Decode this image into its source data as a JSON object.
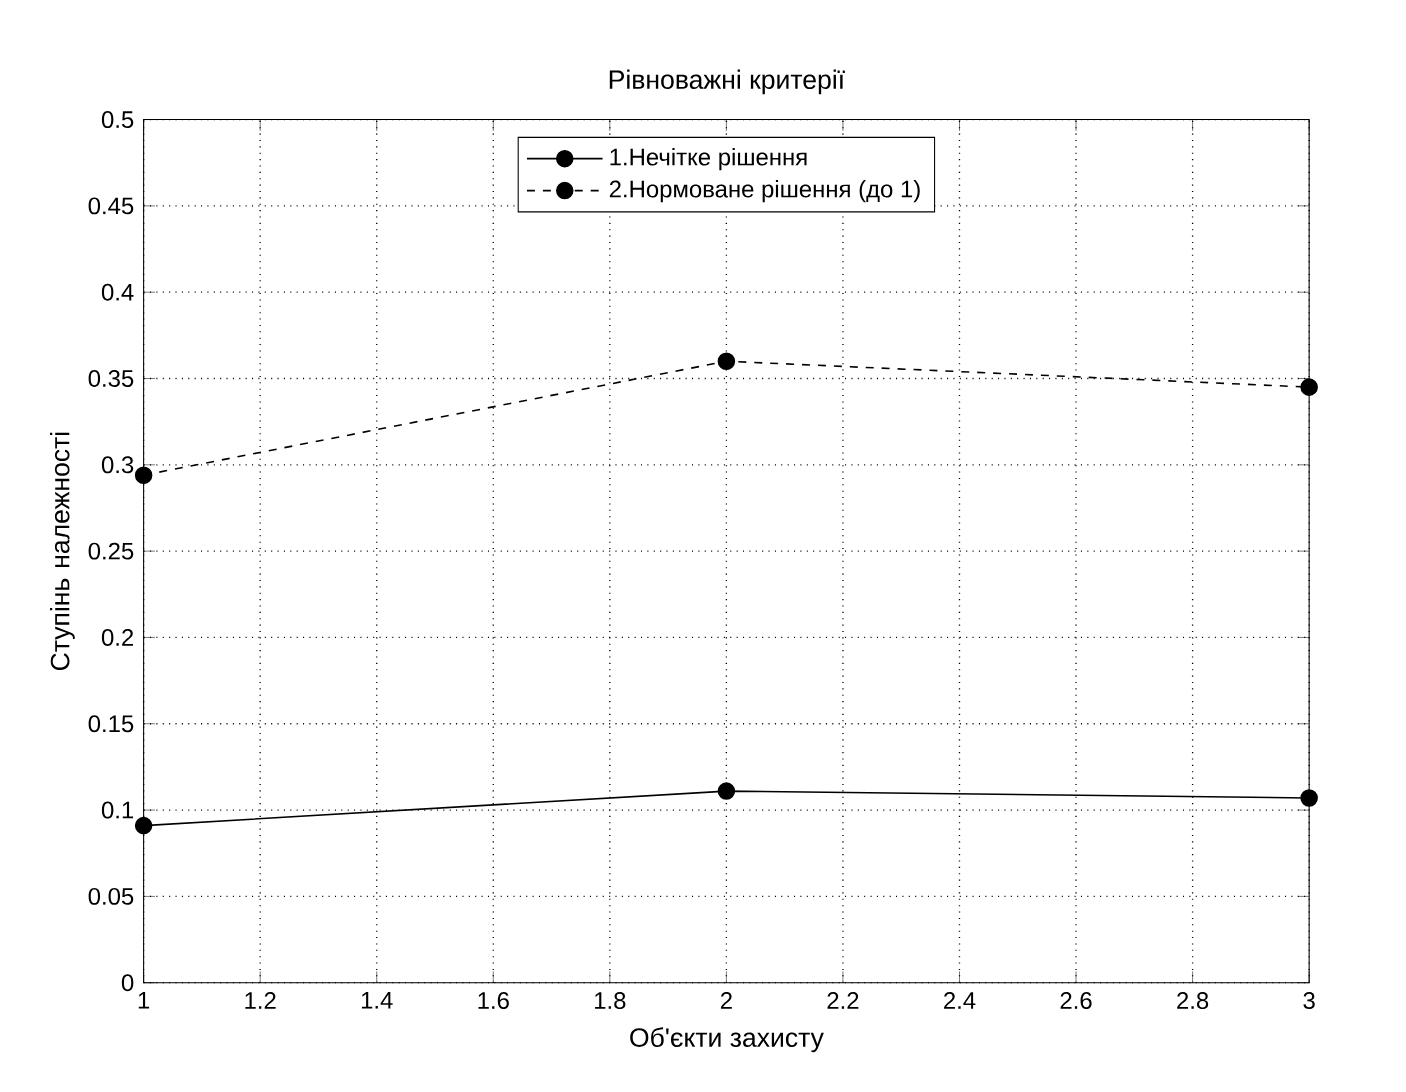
{
  "chart_data": {
    "type": "line",
    "title": "Рівноважні критерії",
    "xlabel": "Об'єкти захисту",
    "ylabel": "Ступінь належності",
    "x": [
      1,
      2,
      3
    ],
    "series": [
      {
        "name": "1.Нечітке рішення",
        "color": "#000000",
        "values": [
          0.091,
          0.111,
          0.107
        ],
        "line_style": "solid"
      },
      {
        "name": "2.Нормоване рішення (до 1)",
        "color": "#000000",
        "values": [
          0.294,
          0.36,
          0.345
        ],
        "line_style": "dashed"
      }
    ],
    "xlim": [
      1,
      3
    ],
    "xticks": [
      1,
      1.2,
      1.4,
      1.6,
      1.8,
      2,
      2.2,
      2.4,
      2.6,
      2.8,
      3
    ],
    "ylim": [
      0,
      0.5
    ],
    "yticks": [
      0,
      0.05,
      0.1,
      0.15,
      0.2,
      0.25,
      0.3,
      0.35,
      0.4,
      0.45,
      0.5
    ],
    "grid": true,
    "legend": "top",
    "marker": "circle"
  }
}
